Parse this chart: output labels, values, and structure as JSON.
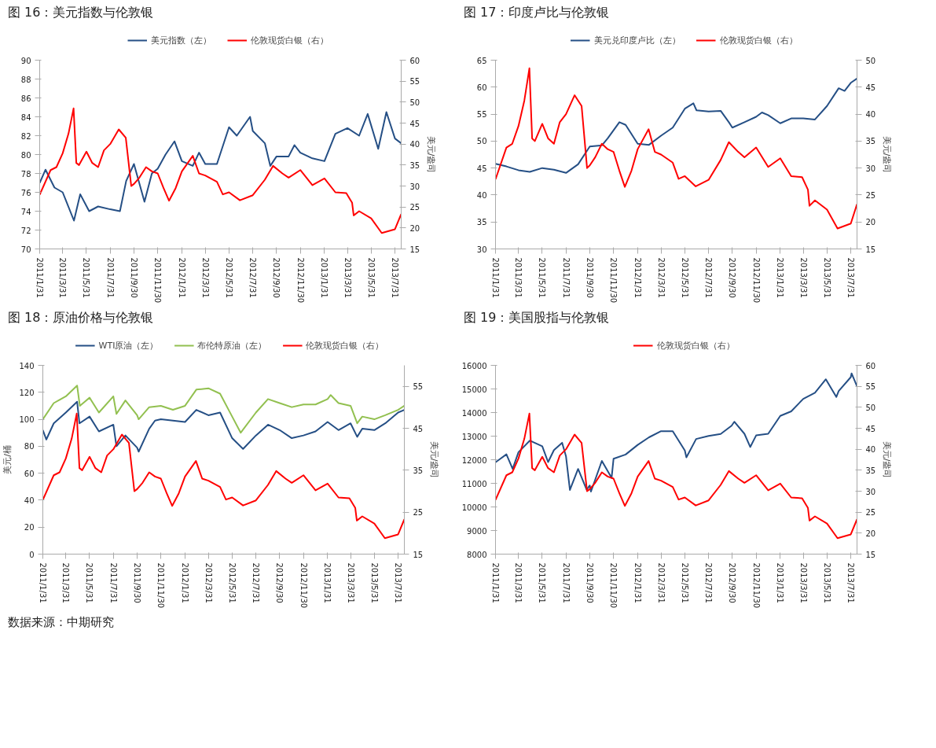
{
  "chart_data": [
    {
      "type": "line",
      "title": "图 16：美元指数与伦敦银",
      "y2label": "美元/盎司",
      "legend": "top",
      "xlim": [
        "2011-01-31",
        "2013-08-16"
      ],
      "xticks": [
        {
          "value": "2011-01-31",
          "label": "2011/1/31"
        },
        {
          "value": "2011-03-31",
          "label": "2011/3/31"
        },
        {
          "value": "2011-05-31",
          "label": "2011/5/31"
        },
        {
          "value": "2011-07-31",
          "label": "2011/7/31"
        },
        {
          "value": "2011-09-30",
          "label": "2011/9/30"
        },
        {
          "value": "2011-11-30",
          "label": "2011/11/30"
        },
        {
          "value": "2012-01-31",
          "label": "2012/1/31"
        },
        {
          "value": "2012-03-31",
          "label": "2012/3/31"
        },
        {
          "value": "2012-05-31",
          "label": "2012/5/31"
        },
        {
          "value": "2012-07-31",
          "label": "2012/7/31"
        },
        {
          "value": "2012-09-30",
          "label": "2012/9/30"
        },
        {
          "value": "2012-11-30",
          "label": "2012/11/30"
        },
        {
          "value": "2013-01-31",
          "label": "2013/1/31"
        },
        {
          "value": "2013-03-31",
          "label": "2013/3/31"
        },
        {
          "value": "2013-05-31",
          "label": "2013/5/31"
        },
        {
          "value": "2013-07-31",
          "label": "2013/7/31"
        }
      ],
      "ylim": [
        70,
        90
      ],
      "yticks": [
        70,
        72,
        74,
        76,
        78,
        80,
        82,
        84,
        86,
        88,
        90
      ],
      "y2lim": [
        15,
        60
      ],
      "y2ticks": [
        15,
        20,
        25,
        30,
        35,
        40,
        45,
        50,
        55,
        60
      ],
      "series": [
        {
          "name": "美元指数（左）",
          "color": "#254f85",
          "axis": "y",
          "x": [
            "2011-01-31",
            "2011-02-15",
            "2011-03-10",
            "2011-03-31",
            "2011-04-29",
            "2011-05-15",
            "2011-06-07",
            "2011-06-30",
            "2011-07-31",
            "2011-08-25",
            "2011-09-10",
            "2011-09-30",
            "2011-10-27",
            "2011-11-15",
            "2011-11-30",
            "2011-12-20",
            "2012-01-12",
            "2012-01-31",
            "2012-02-28",
            "2012-03-15",
            "2012-03-31",
            "2012-04-30",
            "2012-05-31",
            "2012-06-20",
            "2012-07-24",
            "2012-07-31",
            "2012-08-31",
            "2012-09-14",
            "2012-09-30",
            "2012-10-31",
            "2012-11-15",
            "2012-11-30",
            "2012-12-31",
            "2013-01-31",
            "2013-02-28",
            "2013-03-31",
            "2013-04-30",
            "2013-05-22",
            "2013-06-18",
            "2013-07-09",
            "2013-07-31",
            "2013-08-16"
          ],
          "values": [
            77.0,
            78.4,
            76.5,
            76.0,
            73.0,
            75.8,
            74.0,
            74.5,
            74.2,
            74.0,
            77.2,
            79.0,
            75.0,
            78.0,
            78.5,
            80.0,
            81.4,
            79.3,
            78.8,
            80.2,
            79.0,
            79.0,
            82.9,
            82.0,
            84.0,
            82.5,
            81.2,
            78.8,
            79.8,
            79.8,
            81.0,
            80.2,
            79.6,
            79.3,
            82.2,
            82.8,
            82.0,
            84.3,
            80.6,
            84.5,
            81.7,
            81.2
          ]
        },
        {
          "name": "伦敦现货白银（右）",
          "color": "#ff0000",
          "axis": "y2",
          "x": [
            "2011-01-31",
            "2011-02-28",
            "2011-03-15",
            "2011-03-31",
            "2011-04-15",
            "2011-04-28",
            "2011-05-05",
            "2011-05-12",
            "2011-05-31",
            "2011-06-15",
            "2011-06-30",
            "2011-07-15",
            "2011-07-31",
            "2011-08-22",
            "2011-09-09",
            "2011-09-23",
            "2011-09-30",
            "2011-10-14",
            "2011-10-31",
            "2011-11-15",
            "2011-11-30",
            "2011-12-15",
            "2011-12-29",
            "2012-01-15",
            "2012-01-31",
            "2012-02-28",
            "2012-03-15",
            "2012-03-31",
            "2012-04-30",
            "2012-05-15",
            "2012-05-31",
            "2012-06-28",
            "2012-07-31",
            "2012-08-31",
            "2012-09-21",
            "2012-10-15",
            "2012-10-31",
            "2012-11-30",
            "2012-12-31",
            "2013-01-31",
            "2013-02-28",
            "2013-03-28",
            "2013-04-12",
            "2013-04-16",
            "2013-04-30",
            "2013-05-31",
            "2013-06-27",
            "2013-07-31",
            "2013-08-16"
          ],
          "values": [
            27.9,
            33.8,
            34.5,
            37.8,
            42.5,
            48.5,
            35.5,
            35.0,
            38.2,
            35.5,
            34.5,
            38.5,
            40.0,
            43.5,
            41.5,
            30.0,
            30.5,
            32.0,
            34.5,
            33.5,
            33.0,
            29.5,
            26.5,
            29.5,
            33.5,
            37.2,
            33.0,
            32.5,
            31.0,
            28.0,
            28.5,
            26.6,
            27.8,
            31.5,
            34.8,
            33.0,
            32.0,
            33.8,
            30.2,
            31.8,
            28.5,
            28.3,
            26.0,
            23.0,
            24.0,
            22.3,
            18.8,
            19.7,
            23.3
          ]
        }
      ]
    },
    {
      "type": "line",
      "title": "图 17：印度卢比与伦敦银",
      "y2label": "美元/盎司",
      "legend": "top",
      "xlim": [
        "2011-01-31",
        "2013-08-16"
      ],
      "xticks": [
        {
          "value": "2011-01-31",
          "label": "2011/1/31"
        },
        {
          "value": "2011-03-31",
          "label": "2011/3/31"
        },
        {
          "value": "2011-05-31",
          "label": "2011/5/31"
        },
        {
          "value": "2011-07-31",
          "label": "2011/7/31"
        },
        {
          "value": "2011-09-30",
          "label": "2011/9/30"
        },
        {
          "value": "2011-11-30",
          "label": "2011/11/30"
        },
        {
          "value": "2012-01-31",
          "label": "2012/1/31"
        },
        {
          "value": "2012-03-31",
          "label": "2012/3/31"
        },
        {
          "value": "2012-05-31",
          "label": "2012/5/31"
        },
        {
          "value": "2012-07-31",
          "label": "2012/7/31"
        },
        {
          "value": "2012-09-30",
          "label": "2012/9/30"
        },
        {
          "value": "2012-11-30",
          "label": "2012/11/30"
        },
        {
          "value": "2013-01-31",
          "label": "2013/1/31"
        },
        {
          "value": "2013-03-31",
          "label": "2013/3/31"
        },
        {
          "value": "2013-05-31",
          "label": "2013/5/31"
        },
        {
          "value": "2013-07-31",
          "label": "2013/7/31"
        }
      ],
      "ylim": [
        30,
        65
      ],
      "yticks": [
        30,
        35,
        40,
        45,
        50,
        55,
        60,
        65
      ],
      "y2lim": [
        15,
        50
      ],
      "y2ticks": [
        15,
        20,
        25,
        30,
        35,
        40,
        45,
        50
      ],
      "series": [
        {
          "name": "美元兑印度卢比（左）",
          "color": "#254f85",
          "axis": "y",
          "x": [
            "2011-01-31",
            "2011-02-28",
            "2011-03-31",
            "2011-04-29",
            "2011-05-31",
            "2011-06-30",
            "2011-07-31",
            "2011-08-31",
            "2011-09-30",
            "2011-10-31",
            "2011-11-15",
            "2011-11-30",
            "2011-12-15",
            "2011-12-31",
            "2012-01-31",
            "2012-02-29",
            "2012-03-31",
            "2012-04-30",
            "2012-05-31",
            "2012-06-22",
            "2012-06-30",
            "2012-07-31",
            "2012-08-31",
            "2012-09-21",
            "2012-09-30",
            "2012-10-31",
            "2012-11-30",
            "2012-12-15",
            "2012-12-31",
            "2013-01-31",
            "2013-02-28",
            "2013-03-31",
            "2013-04-30",
            "2013-05-31",
            "2013-06-30",
            "2013-07-15",
            "2013-07-31",
            "2013-08-16"
          ],
          "values": [
            45.8,
            45.3,
            44.6,
            44.3,
            45.0,
            44.7,
            44.1,
            45.7,
            49.0,
            49.2,
            50.5,
            52.0,
            53.5,
            53.0,
            49.5,
            49.3,
            51.0,
            52.5,
            56.0,
            57.0,
            55.7,
            55.5,
            55.6,
            53.5,
            52.5,
            53.5,
            54.5,
            55.3,
            54.8,
            53.3,
            54.2,
            54.2,
            54.0,
            56.5,
            59.8,
            59.3,
            60.8,
            61.6
          ]
        },
        {
          "name": "伦敦现货白银（右）",
          "color": "#ff0000",
          "axis": "y2",
          "x": [
            "2011-01-31",
            "2011-02-28",
            "2011-03-15",
            "2011-03-31",
            "2011-04-15",
            "2011-04-28",
            "2011-05-05",
            "2011-05-12",
            "2011-05-31",
            "2011-06-15",
            "2011-06-30",
            "2011-07-15",
            "2011-07-31",
            "2011-08-22",
            "2011-09-09",
            "2011-09-23",
            "2011-09-30",
            "2011-10-14",
            "2011-10-31",
            "2011-11-15",
            "2011-11-30",
            "2011-12-15",
            "2011-12-29",
            "2012-01-15",
            "2012-01-31",
            "2012-02-28",
            "2012-03-15",
            "2012-03-31",
            "2012-04-30",
            "2012-05-15",
            "2012-05-31",
            "2012-06-28",
            "2012-07-31",
            "2012-08-31",
            "2012-09-21",
            "2012-10-15",
            "2012-10-31",
            "2012-11-30",
            "2012-12-31",
            "2013-01-31",
            "2013-02-28",
            "2013-03-28",
            "2013-04-12",
            "2013-04-16",
            "2013-04-30",
            "2013-05-31",
            "2013-06-27",
            "2013-07-31",
            "2013-08-16"
          ],
          "values": [
            27.9,
            33.8,
            34.5,
            37.8,
            42.5,
            48.5,
            35.5,
            35.0,
            38.2,
            35.5,
            34.5,
            38.5,
            40.0,
            43.5,
            41.5,
            30.0,
            30.5,
            32.0,
            34.5,
            33.5,
            33.0,
            29.5,
            26.5,
            29.5,
            33.5,
            37.2,
            33.0,
            32.5,
            31.0,
            28.0,
            28.5,
            26.6,
            27.8,
            31.5,
            34.8,
            33.0,
            32.0,
            33.8,
            30.2,
            31.8,
            28.5,
            28.3,
            26.0,
            23.0,
            24.0,
            22.3,
            18.8,
            19.7,
            23.3
          ]
        }
      ]
    },
    {
      "type": "line",
      "title": "图 18：原油价格与伦敦银",
      "ylabel": "美元/桶",
      "y2label": "美元/盎司",
      "legend": "top",
      "xlim": [
        "2011-01-31",
        "2013-08-16"
      ],
      "xticks": [
        {
          "value": "2011-01-31",
          "label": "2011/1/31"
        },
        {
          "value": "2011-03-31",
          "label": "2011/3/31"
        },
        {
          "value": "2011-05-31",
          "label": "2011/5/31"
        },
        {
          "value": "2011-07-31",
          "label": "2011/7/31"
        },
        {
          "value": "2011-09-30",
          "label": "2011/9/30"
        },
        {
          "value": "2011-11-30",
          "label": "2011/11/30"
        },
        {
          "value": "2012-01-31",
          "label": "2012/1/31"
        },
        {
          "value": "2012-03-31",
          "label": "2012/3/31"
        },
        {
          "value": "2012-05-31",
          "label": "2012/5/31"
        },
        {
          "value": "2012-07-31",
          "label": "2012/7/31"
        },
        {
          "value": "2012-09-30",
          "label": "2012/9/30"
        },
        {
          "value": "2012-11-30",
          "label": "2012/11/30"
        },
        {
          "value": "2013-01-31",
          "label": "2013/1/31"
        },
        {
          "value": "2013-03-31",
          "label": "2013/3/31"
        },
        {
          "value": "2013-05-31",
          "label": "2013/5/31"
        },
        {
          "value": "2013-07-31",
          "label": "2013/7/31"
        }
      ],
      "ylim": [
        0,
        140
      ],
      "yticks": [
        0,
        20,
        40,
        60,
        80,
        100,
        120,
        140
      ],
      "y2lim": [
        15,
        60
      ],
      "y2ticks": [
        15,
        25,
        35,
        45,
        55
      ],
      "series": [
        {
          "name": "WTI原油（左）",
          "color": "#254f85",
          "axis": "y",
          "x": [
            "2011-01-31",
            "2011-02-09",
            "2011-02-28",
            "2011-03-31",
            "2011-04-29",
            "2011-05-05",
            "2011-05-31",
            "2011-06-24",
            "2011-07-31",
            "2011-08-08",
            "2011-08-31",
            "2011-09-30",
            "2011-10-04",
            "2011-10-31",
            "2011-11-15",
            "2011-11-30",
            "2011-12-31",
            "2012-01-31",
            "2012-02-29",
            "2012-03-31",
            "2012-04-30",
            "2012-05-31",
            "2012-06-28",
            "2012-07-31",
            "2012-08-31",
            "2012-09-30",
            "2012-10-31",
            "2012-11-30",
            "2012-12-31",
            "2013-01-31",
            "2013-02-28",
            "2013-03-31",
            "2013-04-17",
            "2013-04-30",
            "2013-05-31",
            "2013-06-28",
            "2013-07-31",
            "2013-08-16"
          ],
          "values": [
            92,
            85,
            97,
            105,
            113,
            97,
            102,
            91,
            96,
            80,
            88,
            79,
            76,
            93,
            99,
            100,
            99,
            98,
            107,
            103,
            105,
            86,
            78,
            88,
            96,
            92,
            86,
            88,
            91,
            98,
            92,
            97,
            87,
            93,
            92,
            97,
            105,
            107
          ]
        },
        {
          "name": "布伦特原油（左）",
          "color": "#92c050",
          "axis": "y",
          "x": [
            "2011-01-31",
            "2011-02-28",
            "2011-03-31",
            "2011-04-29",
            "2011-05-06",
            "2011-05-31",
            "2011-06-24",
            "2011-07-31",
            "2011-08-08",
            "2011-08-31",
            "2011-09-30",
            "2011-10-04",
            "2011-10-31",
            "2011-11-30",
            "2011-12-31",
            "2012-01-31",
            "2012-02-29",
            "2012-03-31",
            "2012-04-30",
            "2012-05-31",
            "2012-06-22",
            "2012-07-31",
            "2012-08-31",
            "2012-09-30",
            "2012-10-31",
            "2012-11-30",
            "2012-12-31",
            "2013-01-31",
            "2013-02-08",
            "2013-02-28",
            "2013-03-31",
            "2013-04-17",
            "2013-04-30",
            "2013-05-31",
            "2013-06-28",
            "2013-07-31",
            "2013-08-16"
          ],
          "values": [
            100,
            112,
            117,
            125,
            110,
            116,
            105,
            117,
            104,
            114,
            103,
            100,
            109,
            110,
            107,
            110,
            122,
            123,
            119,
            102,
            90,
            105,
            115,
            112,
            109,
            111,
            111,
            115,
            118,
            112,
            110,
            97,
            102,
            100,
            103,
            107,
            110
          ]
        },
        {
          "name": "伦敦现货白银（右）",
          "color": "#ff0000",
          "axis": "y2",
          "x": [
            "2011-01-31",
            "2011-02-28",
            "2011-03-15",
            "2011-03-31",
            "2011-04-15",
            "2011-04-28",
            "2011-05-05",
            "2011-05-12",
            "2011-05-31",
            "2011-06-15",
            "2011-06-30",
            "2011-07-15",
            "2011-07-31",
            "2011-08-22",
            "2011-09-09",
            "2011-09-23",
            "2011-09-30",
            "2011-10-14",
            "2011-10-31",
            "2011-11-15",
            "2011-11-30",
            "2011-12-15",
            "2011-12-29",
            "2012-01-15",
            "2012-01-31",
            "2012-02-28",
            "2012-03-15",
            "2012-03-31",
            "2012-04-30",
            "2012-05-15",
            "2012-05-31",
            "2012-06-28",
            "2012-07-31",
            "2012-08-31",
            "2012-09-21",
            "2012-10-15",
            "2012-10-31",
            "2012-11-30",
            "2012-12-31",
            "2013-01-31",
            "2013-02-28",
            "2013-03-28",
            "2013-04-12",
            "2013-04-16",
            "2013-04-30",
            "2013-05-31",
            "2013-06-27",
            "2013-07-31",
            "2013-08-16"
          ],
          "values": [
            27.9,
            33.8,
            34.5,
            37.8,
            42.5,
            48.5,
            35.5,
            35.0,
            38.2,
            35.5,
            34.5,
            38.5,
            40.0,
            43.5,
            41.5,
            30.0,
            30.5,
            32.0,
            34.5,
            33.5,
            33.0,
            29.5,
            26.5,
            29.5,
            33.5,
            37.2,
            33.0,
            32.5,
            31.0,
            28.0,
            28.5,
            26.6,
            27.8,
            31.5,
            34.8,
            33.0,
            32.0,
            33.8,
            30.2,
            31.8,
            28.5,
            28.3,
            26.0,
            23.0,
            24.0,
            22.3,
            18.8,
            19.7,
            23.3
          ]
        }
      ]
    },
    {
      "type": "line",
      "title": "图 19：美国股指与伦敦银",
      "y2label": "美元/盎司",
      "legend": "top",
      "xlim": [
        "2011-01-31",
        "2013-08-16"
      ],
      "xticks": [
        {
          "value": "2011-01-31",
          "label": "2011/1/31"
        },
        {
          "value": "2011-03-31",
          "label": "2011/3/31"
        },
        {
          "value": "2011-05-31",
          "label": "2011/5/31"
        },
        {
          "value": "2011-07-31",
          "label": "2011/7/31"
        },
        {
          "value": "2011-09-30",
          "label": "2011/9/30"
        },
        {
          "value": "2011-11-30",
          "label": "2011/11/30"
        },
        {
          "value": "2012-01-31",
          "label": "2012/1/31"
        },
        {
          "value": "2012-03-31",
          "label": "2012/3/31"
        },
        {
          "value": "2012-05-31",
          "label": "2012/5/31"
        },
        {
          "value": "2012-07-31",
          "label": "2012/7/31"
        },
        {
          "value": "2012-09-30",
          "label": "2012/9/30"
        },
        {
          "value": "2012-11-30",
          "label": "2012/11/30"
        },
        {
          "value": "2013-01-31",
          "label": "2013/1/31"
        },
        {
          "value": "2013-03-31",
          "label": "2013/3/31"
        },
        {
          "value": "2013-05-31",
          "label": "2013/5/31"
        },
        {
          "value": "2013-07-31",
          "label": "2013/7/31"
        }
      ],
      "ylim": [
        8000,
        16000
      ],
      "yticks": [
        8000,
        9000,
        10000,
        11000,
        12000,
        13000,
        14000,
        15000,
        16000
      ],
      "y2lim": [
        15,
        60
      ],
      "y2ticks": [
        15,
        20,
        25,
        30,
        35,
        40,
        45,
        50,
        55,
        60
      ],
      "annotations": [
        "数据来源：中期研究"
      ],
      "series": [
        {
          "color": "#254f85",
          "axis": "y",
          "x": [
            "2011-01-31",
            "2011-02-28",
            "2011-03-16",
            "2011-03-31",
            "2011-04-29",
            "2011-05-31",
            "2011-06-15",
            "2011-06-30",
            "2011-07-21",
            "2011-07-31",
            "2011-08-10",
            "2011-08-31",
            "2011-09-22",
            "2011-09-30",
            "2011-10-03",
            "2011-10-31",
            "2011-11-25",
            "2011-11-30",
            "2011-12-31",
            "2012-01-31",
            "2012-02-29",
            "2012-03-31",
            "2012-04-30",
            "2012-05-31",
            "2012-06-04",
            "2012-06-29",
            "2012-07-31",
            "2012-08-31",
            "2012-09-28",
            "2012-10-05",
            "2012-10-31",
            "2012-11-15",
            "2012-11-30",
            "2012-12-31",
            "2013-01-31",
            "2013-02-28",
            "2013-03-31",
            "2013-04-30",
            "2013-05-28",
            "2013-06-24",
            "2013-06-30",
            "2013-07-31",
            "2013-08-02",
            "2013-08-16"
          ],
          "values": [
            11890,
            12230,
            11610,
            12320,
            12810,
            12570,
            11900,
            12410,
            12720,
            12140,
            10720,
            11610,
            10730,
            10910,
            10650,
            11950,
            11230,
            12040,
            12220,
            12630,
            12950,
            13210,
            13210,
            12390,
            12100,
            12880,
            13010,
            13090,
            13440,
            13610,
            13100,
            12540,
            13030,
            13100,
            13860,
            14050,
            14580,
            14840,
            15410,
            14660,
            14910,
            15500,
            15660,
            15110
          ]
        },
        {
          "name": "伦敦现货白银（右）",
          "color": "#ff0000",
          "axis": "y2",
          "x": [
            "2011-01-31",
            "2011-02-28",
            "2011-03-15",
            "2011-03-31",
            "2011-04-15",
            "2011-04-28",
            "2011-05-05",
            "2011-05-12",
            "2011-05-31",
            "2011-06-15",
            "2011-06-30",
            "2011-07-15",
            "2011-07-31",
            "2011-08-22",
            "2011-09-09",
            "2011-09-23",
            "2011-09-30",
            "2011-10-14",
            "2011-10-31",
            "2011-11-15",
            "2011-11-30",
            "2011-12-15",
            "2011-12-29",
            "2012-01-15",
            "2012-01-31",
            "2012-02-28",
            "2012-03-15",
            "2012-03-31",
            "2012-04-30",
            "2012-05-15",
            "2012-05-31",
            "2012-06-28",
            "2012-07-31",
            "2012-08-31",
            "2012-09-21",
            "2012-10-15",
            "2012-10-31",
            "2012-11-30",
            "2012-12-31",
            "2013-01-31",
            "2013-02-28",
            "2013-03-28",
            "2013-04-12",
            "2013-04-16",
            "2013-04-30",
            "2013-05-31",
            "2013-06-27",
            "2013-07-31",
            "2013-08-16"
          ],
          "values": [
            27.9,
            33.8,
            34.5,
            37.8,
            42.5,
            48.5,
            35.5,
            35.0,
            38.2,
            35.5,
            34.5,
            38.5,
            40.0,
            43.5,
            41.5,
            30.0,
            30.5,
            32.0,
            34.5,
            33.5,
            33.0,
            29.5,
            26.5,
            29.5,
            33.5,
            37.2,
            33.0,
            32.5,
            31.0,
            28.0,
            28.5,
            26.6,
            27.8,
            31.5,
            34.8,
            33.0,
            32.0,
            33.8,
            30.2,
            31.8,
            28.5,
            28.3,
            26.0,
            23.0,
            24.0,
            22.3,
            18.8,
            19.7,
            23.3
          ]
        }
      ]
    }
  ]
}
